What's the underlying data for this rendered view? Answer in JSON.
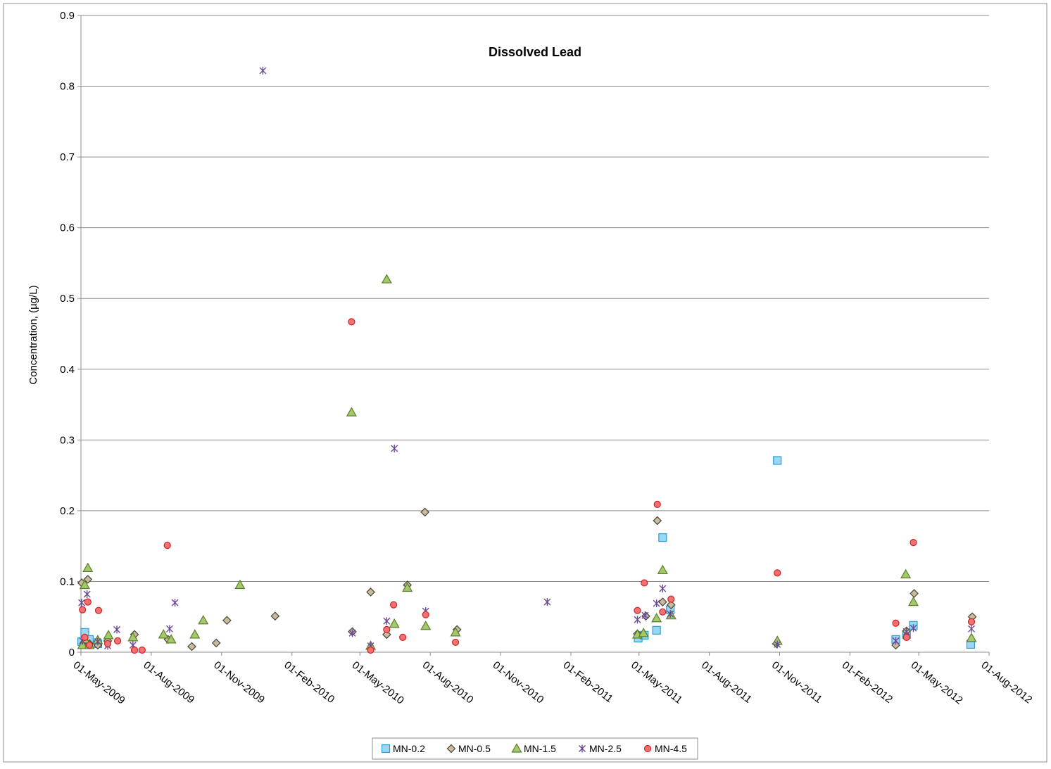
{
  "chart_data": {
    "type": "scatter",
    "title": "Dissolved Lead",
    "xlabel": "",
    "ylabel": "Concentration, (µg/L)",
    "ylim": [
      0,
      0.9
    ],
    "yticks": [
      "0",
      "0.1",
      "0.2",
      "0.3",
      "0.4",
      "0.5",
      "0.6",
      "0.7",
      "0.8",
      "0.9"
    ],
    "xlim": [
      "2009-05-01",
      "2012-08-01"
    ],
    "xticks": [
      {
        "date": "2009-05-01",
        "label": "01-May-2009"
      },
      {
        "date": "2009-08-01",
        "label": "01-Aug-2009"
      },
      {
        "date": "2009-11-01",
        "label": "01-Nov-2009"
      },
      {
        "date": "2010-02-01",
        "label": "01-Feb-2010"
      },
      {
        "date": "2010-05-01",
        "label": "01-May-2010"
      },
      {
        "date": "2010-08-01",
        "label": "01-Aug-2010"
      },
      {
        "date": "2010-11-01",
        "label": "01-Nov-2010"
      },
      {
        "date": "2011-02-01",
        "label": "01-Feb-2011"
      },
      {
        "date": "2011-05-01",
        "label": "01-May-2011"
      },
      {
        "date": "2011-08-01",
        "label": "01-Aug-2011"
      },
      {
        "date": "2011-11-01",
        "label": "01-Nov-2011"
      },
      {
        "date": "2012-02-01",
        "label": "01-Feb-2012"
      },
      {
        "date": "2012-05-01",
        "label": "01-May-2012"
      },
      {
        "date": "2012-08-01",
        "label": "01-Aug-2012"
      }
    ],
    "grid": true,
    "legend_position": "bottom",
    "series": [
      {
        "name": "MN-0.2",
        "marker": "square",
        "fill": "#9cd6f0",
        "stroke": "#2e9fd6",
        "points": [
          [
            "2009-05-02",
            0.015
          ],
          [
            "2009-05-06",
            0.028
          ],
          [
            "2009-05-12",
            0.018
          ],
          [
            "2009-05-23",
            0.012
          ],
          [
            "2011-04-30",
            0.02
          ],
          [
            "2011-05-08",
            0.024
          ],
          [
            "2011-05-24",
            0.031
          ],
          [
            "2011-06-01",
            0.162
          ],
          [
            "2011-06-11",
            0.06
          ],
          [
            "2011-10-29",
            0.271
          ],
          [
            "2012-04-01",
            0.018
          ],
          [
            "2012-04-15",
            0.025
          ],
          [
            "2012-04-24",
            0.038
          ],
          [
            "2012-07-08",
            0.011
          ]
        ]
      },
      {
        "name": "MN-0.5",
        "marker": "diamond",
        "fill": "#c8bb9e",
        "stroke": "#4a4536",
        "points": [
          [
            "2009-05-02",
            0.098
          ],
          [
            "2009-05-10",
            0.103
          ],
          [
            "2009-05-12",
            0.012
          ],
          [
            "2009-05-23",
            0.01
          ],
          [
            "2009-06-05",
            0.016
          ],
          [
            "2009-07-10",
            0.025
          ],
          [
            "2009-08-23",
            0.018
          ],
          [
            "2009-09-23",
            0.008
          ],
          [
            "2009-10-25",
            0.013
          ],
          [
            "2009-11-08",
            0.045
          ],
          [
            "2010-01-10",
            0.051
          ],
          [
            "2010-04-21",
            0.029
          ],
          [
            "2010-05-15",
            0.085
          ],
          [
            "2010-06-05",
            0.025
          ],
          [
            "2010-07-02",
            0.095
          ],
          [
            "2010-07-25",
            0.198
          ],
          [
            "2010-09-05",
            0.032
          ],
          [
            "2011-04-29",
            0.026
          ],
          [
            "2011-05-10",
            0.051
          ],
          [
            "2011-05-25",
            0.186
          ],
          [
            "2011-06-01",
            0.071
          ],
          [
            "2011-06-12",
            0.067
          ],
          [
            "2011-10-28",
            0.012
          ],
          [
            "2012-04-01",
            0.01
          ],
          [
            "2012-04-15",
            0.03
          ],
          [
            "2012-04-25",
            0.083
          ],
          [
            "2012-07-10",
            0.05
          ]
        ]
      },
      {
        "name": "MN-1.5",
        "marker": "triangle",
        "fill": "#a4c96a",
        "stroke": "#5b7d2a",
        "points": [
          [
            "2009-05-03",
            0.01
          ],
          [
            "2009-05-06",
            0.095
          ],
          [
            "2009-05-06",
            0.018
          ],
          [
            "2009-05-10",
            0.119
          ],
          [
            "2009-05-12",
            0.01
          ],
          [
            "2009-05-23",
            0.017
          ],
          [
            "2009-06-06",
            0.024
          ],
          [
            "2009-07-08",
            0.021
          ],
          [
            "2009-08-17",
            0.025
          ],
          [
            "2009-08-27",
            0.018
          ],
          [
            "2009-09-27",
            0.025
          ],
          [
            "2009-10-08",
            0.045
          ],
          [
            "2009-11-25",
            0.095
          ],
          [
            "2010-04-20",
            0.339
          ],
          [
            "2010-05-15",
            0.009
          ],
          [
            "2010-06-05",
            0.527
          ],
          [
            "2010-06-15",
            0.04
          ],
          [
            "2010-07-02",
            0.091
          ],
          [
            "2010-07-26",
            0.037
          ],
          [
            "2010-09-03",
            0.028
          ],
          [
            "2011-04-29",
            0.025
          ],
          [
            "2011-05-07",
            0.027
          ],
          [
            "2011-05-24",
            0.048
          ],
          [
            "2011-06-01",
            0.116
          ],
          [
            "2011-06-12",
            0.052
          ],
          [
            "2011-10-29",
            0.016
          ],
          [
            "2012-04-14",
            0.11
          ],
          [
            "2012-04-24",
            0.071
          ],
          [
            "2012-07-09",
            0.02
          ]
        ]
      },
      {
        "name": "MN-2.5",
        "marker": "asterisk",
        "fill": "#6a4a96",
        "stroke": "#6a4a96",
        "points": [
          [
            "2009-05-02",
            0.07
          ],
          [
            "2009-05-03",
            0.016
          ],
          [
            "2009-05-09",
            0.082
          ],
          [
            "2009-05-23",
            0.015
          ],
          [
            "2009-06-05",
            0.009
          ],
          [
            "2009-06-17",
            0.032
          ],
          [
            "2009-07-08",
            0.01
          ],
          [
            "2009-08-25",
            0.033
          ],
          [
            "2009-09-01",
            0.07
          ],
          [
            "2009-12-25",
            0.822
          ],
          [
            "2010-04-21",
            0.027
          ],
          [
            "2010-05-15",
            0.009
          ],
          [
            "2010-06-05",
            0.044
          ],
          [
            "2010-06-15",
            0.288
          ],
          [
            "2010-07-26",
            0.058
          ],
          [
            "2011-01-01",
            0.071
          ],
          [
            "2011-04-29",
            0.046
          ],
          [
            "2011-05-09",
            0.052
          ],
          [
            "2011-05-24",
            0.069
          ],
          [
            "2011-06-01",
            0.09
          ],
          [
            "2011-06-11",
            0.054
          ],
          [
            "2011-10-29",
            0.011
          ],
          [
            "2012-04-01",
            0.016
          ],
          [
            "2012-04-15",
            0.029
          ],
          [
            "2012-04-24",
            0.034
          ],
          [
            "2012-07-09",
            0.033
          ]
        ]
      },
      {
        "name": "MN-4.5",
        "marker": "circle",
        "fill": "#f07272",
        "stroke": "#d62020",
        "points": [
          [
            "2009-05-03",
            0.06
          ],
          [
            "2009-05-06",
            0.021
          ],
          [
            "2009-05-10",
            0.071
          ],
          [
            "2009-05-12",
            0.01
          ],
          [
            "2009-05-24",
            0.059
          ],
          [
            "2009-06-05",
            0.012
          ],
          [
            "2009-06-18",
            0.016
          ],
          [
            "2009-07-10",
            0.003
          ],
          [
            "2009-07-20",
            0.003
          ],
          [
            "2009-08-22",
            0.151
          ],
          [
            "2010-04-20",
            0.467
          ],
          [
            "2010-05-15",
            0.003
          ],
          [
            "2010-06-05",
            0.032
          ],
          [
            "2010-06-14",
            0.067
          ],
          [
            "2010-06-26",
            0.021
          ],
          [
            "2010-07-26",
            0.053
          ],
          [
            "2010-09-03",
            0.014
          ],
          [
            "2011-04-29",
            0.059
          ],
          [
            "2011-05-08",
            0.098
          ],
          [
            "2011-05-25",
            0.209
          ],
          [
            "2011-06-01",
            0.057
          ],
          [
            "2011-06-12",
            0.075
          ],
          [
            "2011-10-29",
            0.112
          ],
          [
            "2012-04-01",
            0.041
          ],
          [
            "2012-04-15",
            0.021
          ],
          [
            "2012-04-24",
            0.155
          ],
          [
            "2012-07-09",
            0.043
          ]
        ]
      }
    ]
  }
}
